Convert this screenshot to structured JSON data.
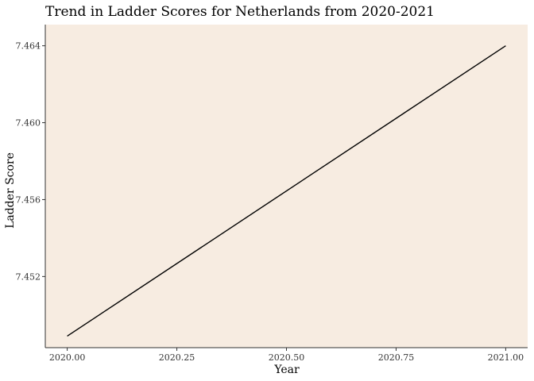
{
  "chart_data": {
    "type": "line",
    "title": "Trend in Ladder Scores for Netherlands from 2020-2021",
    "xlabel": "Year",
    "ylabel": "Ladder Score",
    "x": [
      2020,
      2021
    ],
    "series": [
      {
        "values": [
          7.4489,
          7.464
        ]
      }
    ],
    "xlim": [
      2019.95,
      2021.05
    ],
    "ylim": [
      7.4483,
      7.4651
    ],
    "x_ticks": [
      2020,
      2020.25,
      2020.5,
      2020.75,
      2021
    ],
    "x_tick_labels": [
      "2020.00",
      "2020.25",
      "2020.50",
      "2020.75",
      "2021.00"
    ],
    "y_ticks": [
      7.452,
      7.456,
      7.46,
      7.464
    ],
    "y_tick_labels": [
      "7.452",
      "7.456",
      "7.460",
      "7.464"
    ],
    "grid": false,
    "colors": {
      "panel_background": "#f7ece1",
      "line": "#000000",
      "axis": "#333333"
    }
  }
}
